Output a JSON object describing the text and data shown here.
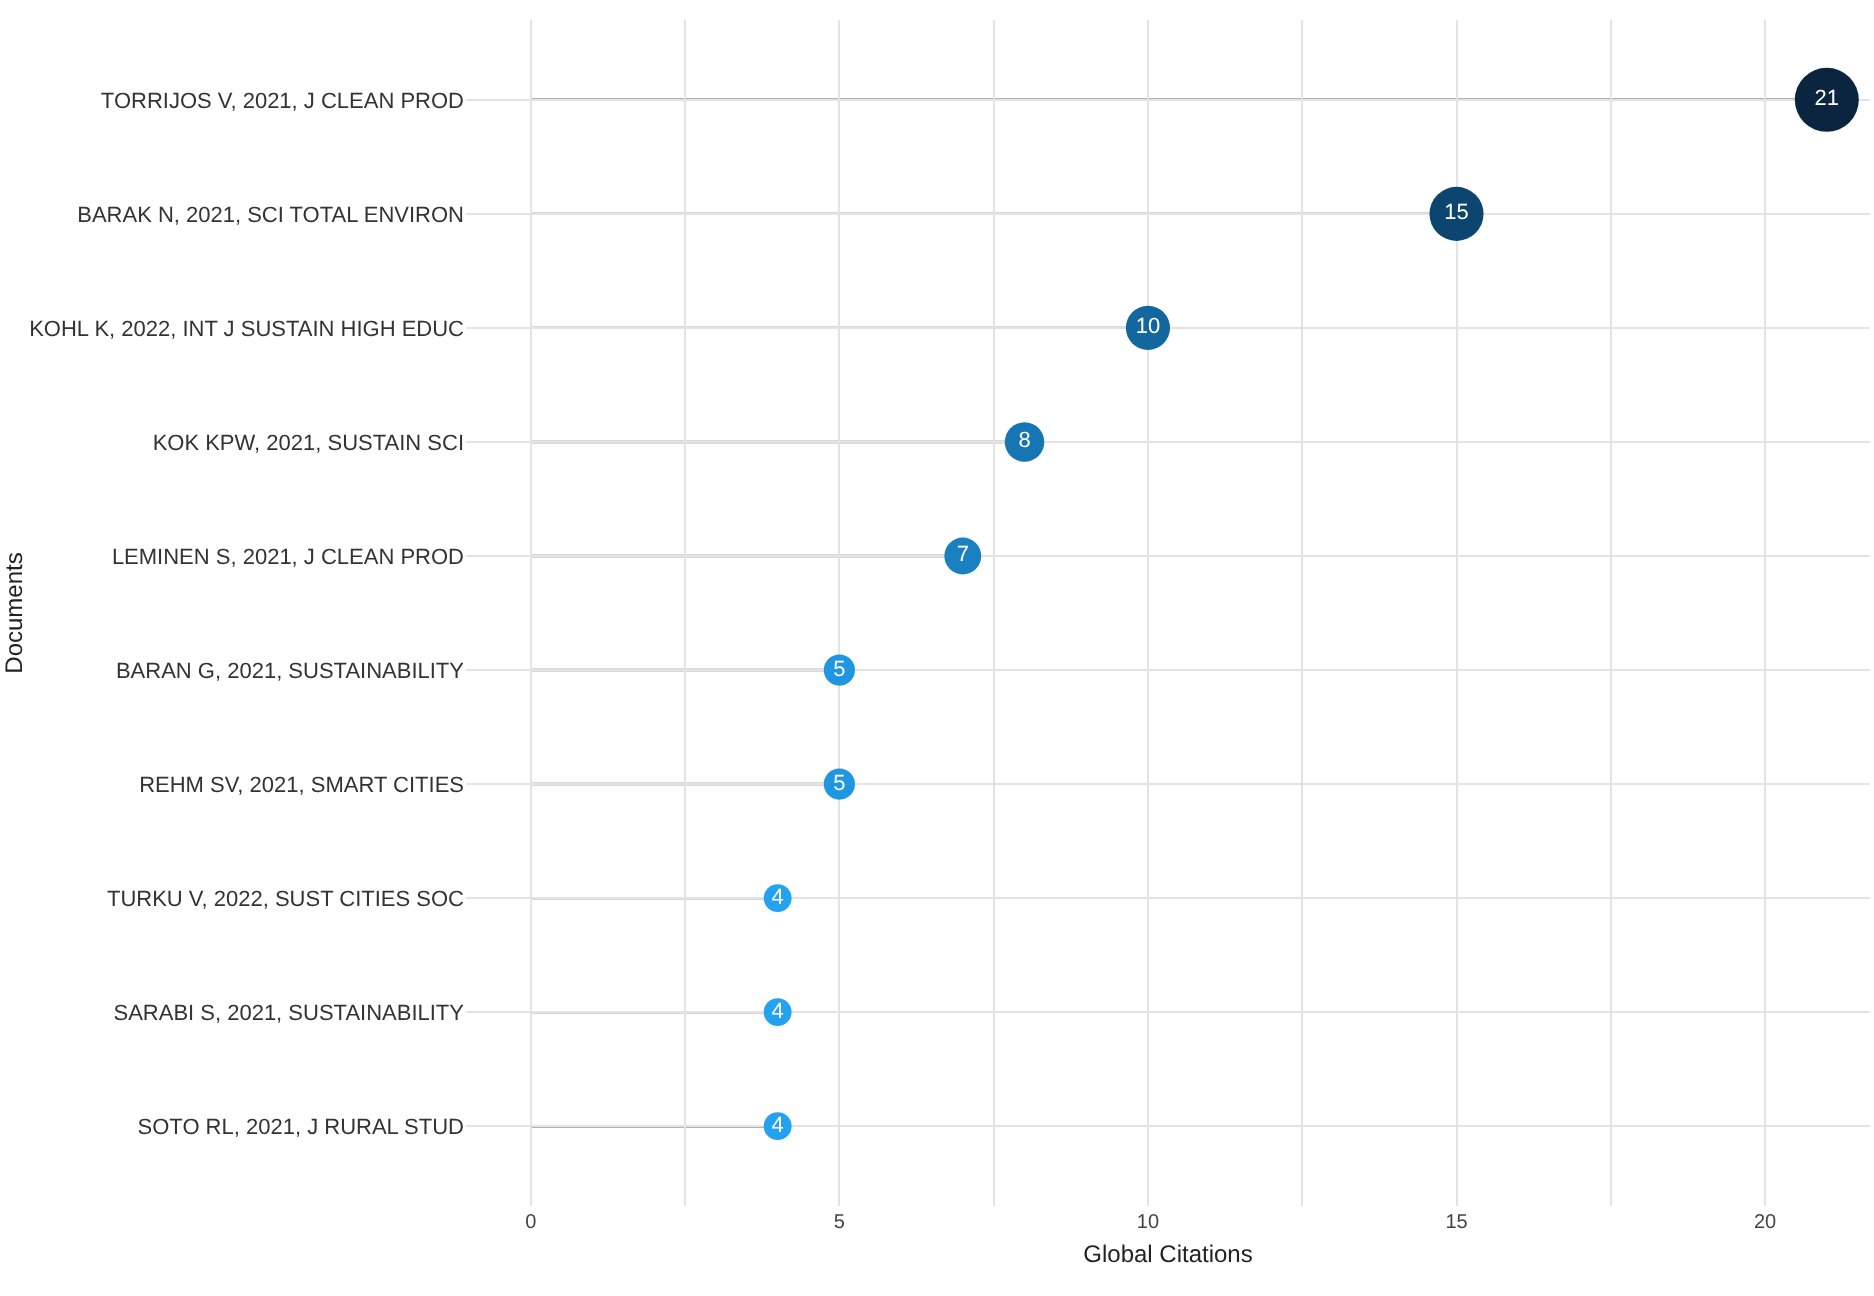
{
  "chart_data": {
    "type": "lollipop",
    "orientation": "horizontal",
    "xlabel": "Global Citations",
    "ylabel": "Documents",
    "categories": [
      "TORRIJOS V, 2021, J CLEAN PROD",
      "BARAK N, 2021, SCI TOTAL ENVIRON",
      "KOHL K, 2022, INT J SUSTAIN HIGH EDUC",
      "KOK KPW, 2021, SUSTAIN SCI",
      "LEMINEN S, 2021, J CLEAN PROD",
      "BARAN G, 2021, SUSTAINABILITY",
      "REHM SV, 2021, SMART CITIES",
      "TURKU V, 2022, SUST CITIES SOC",
      "SARABI S, 2021, SUSTAINABILITY",
      "SOTO RL, 2021, J RURAL STUD"
    ],
    "values": [
      21,
      15,
      10,
      8,
      7,
      5,
      5,
      4,
      4,
      4
    ],
    "colors": [
      "#0b2540",
      "#0c4570",
      "#12679e",
      "#1676b3",
      "#1a80c0",
      "#1f96e0",
      "#1f96e0",
      "#22a2f0",
      "#22a2f0",
      "#22a2f0"
    ],
    "sizes": [
      1,
      0.714,
      0.476,
      0.381,
      0.333,
      0.238,
      0.238,
      0.19,
      0.19,
      0.19
    ],
    "xlim": [
      -1.05,
      21.7
    ],
    "xticks": [
      0,
      5,
      10,
      15,
      20
    ],
    "grid": true,
    "data_labels": true,
    "marker": "circle"
  }
}
